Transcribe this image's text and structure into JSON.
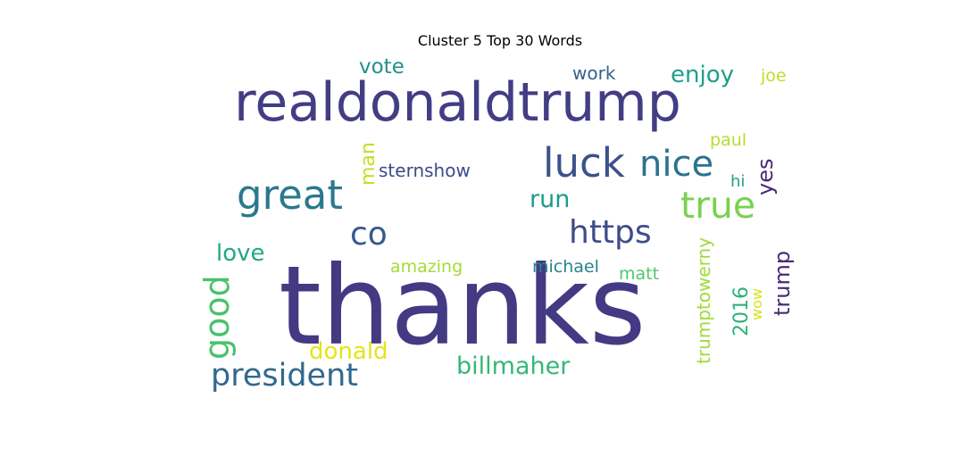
{
  "chart_data": {
    "type": "wordcloud",
    "title": "Cluster 5 Top 30 Words",
    "words": [
      {
        "text": "thanks",
        "color": "#443a83"
      },
      {
        "text": "realdonaldtrump",
        "color": "#433d84"
      },
      {
        "text": "great",
        "color": "#2a788e"
      },
      {
        "text": "luck",
        "color": "#3b528b"
      },
      {
        "text": "nice",
        "color": "#2c728e"
      },
      {
        "text": "true",
        "color": "#7ad151"
      },
      {
        "text": "https",
        "color": "#3e4c8a"
      },
      {
        "text": "co",
        "color": "#38598c"
      },
      {
        "text": "good",
        "color": "#4ac16d"
      },
      {
        "text": "president",
        "color": "#31688e"
      },
      {
        "text": "love",
        "color": "#22a884"
      },
      {
        "text": "vote",
        "color": "#21918c"
      },
      {
        "text": "enjoy",
        "color": "#1f9e89"
      },
      {
        "text": "work",
        "color": "#33638d"
      },
      {
        "text": "joe",
        "color": "#bddf26"
      },
      {
        "text": "man",
        "color": "#c2df23"
      },
      {
        "text": "sternshow",
        "color": "#3e4a89"
      },
      {
        "text": "run",
        "color": "#1f9a8a"
      },
      {
        "text": "paul",
        "color": "#b5de2b"
      },
      {
        "text": "hi",
        "color": "#20a386"
      },
      {
        "text": "yes",
        "color": "#482878"
      },
      {
        "text": "amazing",
        "color": "#a5db36"
      },
      {
        "text": "michael",
        "color": "#25838e"
      },
      {
        "text": "matt",
        "color": "#52c569"
      },
      {
        "text": "donald",
        "color": "#e5e419"
      },
      {
        "text": "billmaher",
        "color": "#35b779"
      },
      {
        "text": "trumptowerny",
        "color": "#a0da39"
      },
      {
        "text": "2016",
        "color": "#2db27d"
      },
      {
        "text": "wow",
        "color": "#d8e219"
      },
      {
        "text": "trump",
        "color": "#472d7b"
      }
    ]
  }
}
